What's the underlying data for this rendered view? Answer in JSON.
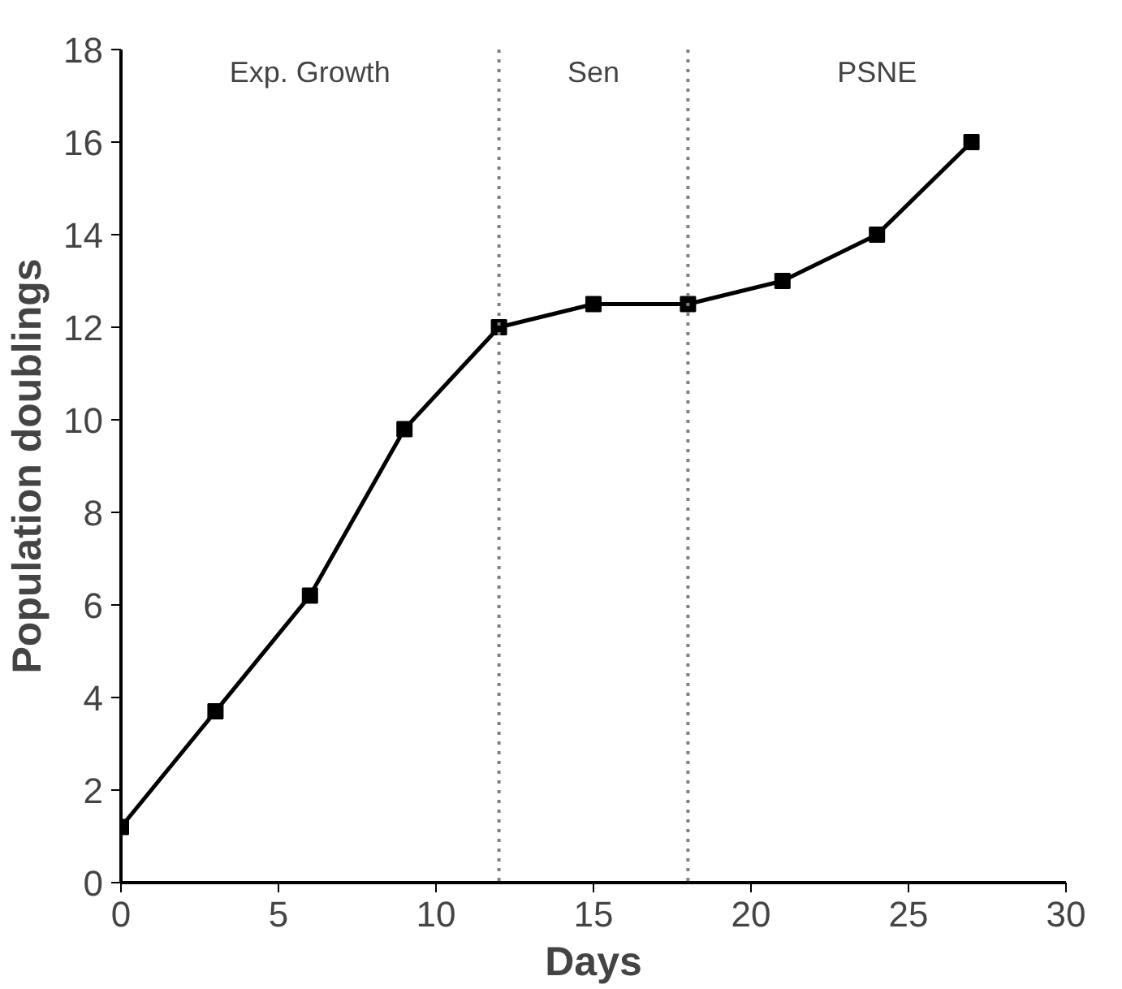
{
  "chart_data": {
    "type": "line",
    "xlabel": "Days",
    "ylabel": "Population doublings",
    "x": [
      0,
      3,
      6,
      9,
      12,
      15,
      18,
      21,
      24,
      27
    ],
    "series": [
      {
        "color": "#000000",
        "values": [
          1.2,
          3.7,
          6.2,
          9.8,
          12.0,
          12.5,
          12.5,
          13.0,
          14.0,
          16.0
        ]
      }
    ],
    "xlim": [
      0,
      30
    ],
    "xticks": [
      0,
      5,
      10,
      15,
      20,
      25,
      30
    ],
    "ylim": [
      0,
      18
    ],
    "yticks": [
      0,
      2,
      4,
      6,
      8,
      10,
      12,
      14,
      16,
      18
    ],
    "ref_lines": [
      {
        "axis": "x",
        "value": 12,
        "color": "#808080",
        "line_style": "dotted"
      },
      {
        "axis": "x",
        "value": 18,
        "color": "#808080",
        "line_style": "dotted"
      }
    ],
    "annotations": [
      "Exp. Growth",
      "Sen",
      "PSNE"
    ],
    "marker": "square",
    "line_style": "solid"
  }
}
